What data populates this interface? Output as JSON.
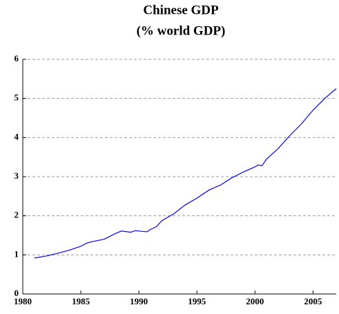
{
  "chart_data": {
    "type": "line",
    "title": "Chinese GDP",
    "subtitle": "(% world GDP)",
    "x": [
      1981,
      1982,
      1983,
      1984,
      1985,
      1985.5,
      1986,
      1987,
      1988,
      1988.5,
      1989.3,
      1989.7,
      1990.3,
      1990.7,
      1991,
      1991.5,
      1992,
      1993,
      1994,
      1995,
      1996,
      1996.5,
      1997,
      1998,
      1999,
      2000,
      2000.3,
      2000.6,
      2001,
      2002,
      2003,
      2004,
      2005,
      2006,
      2007
    ],
    "series": [
      {
        "name": "Chinese GDP",
        "color": "#0000ff",
        "values": [
          0.92,
          0.97,
          1.04,
          1.12,
          1.22,
          1.3,
          1.34,
          1.4,
          1.55,
          1.61,
          1.58,
          1.62,
          1.6,
          1.59,
          1.65,
          1.72,
          1.88,
          2.05,
          2.28,
          2.45,
          2.65,
          2.72,
          2.78,
          2.97,
          3.12,
          3.25,
          3.3,
          3.28,
          3.45,
          3.72,
          4.05,
          4.35,
          4.7,
          5.0,
          5.25
        ]
      }
    ],
    "xlim": [
      1980,
      2007
    ],
    "xticks": [
      1980,
      1985,
      1990,
      1995,
      2000,
      2005
    ],
    "ylim": [
      0,
      6
    ],
    "yticks": [
      0,
      1,
      2,
      3,
      4,
      5,
      6
    ],
    "grid": true
  }
}
